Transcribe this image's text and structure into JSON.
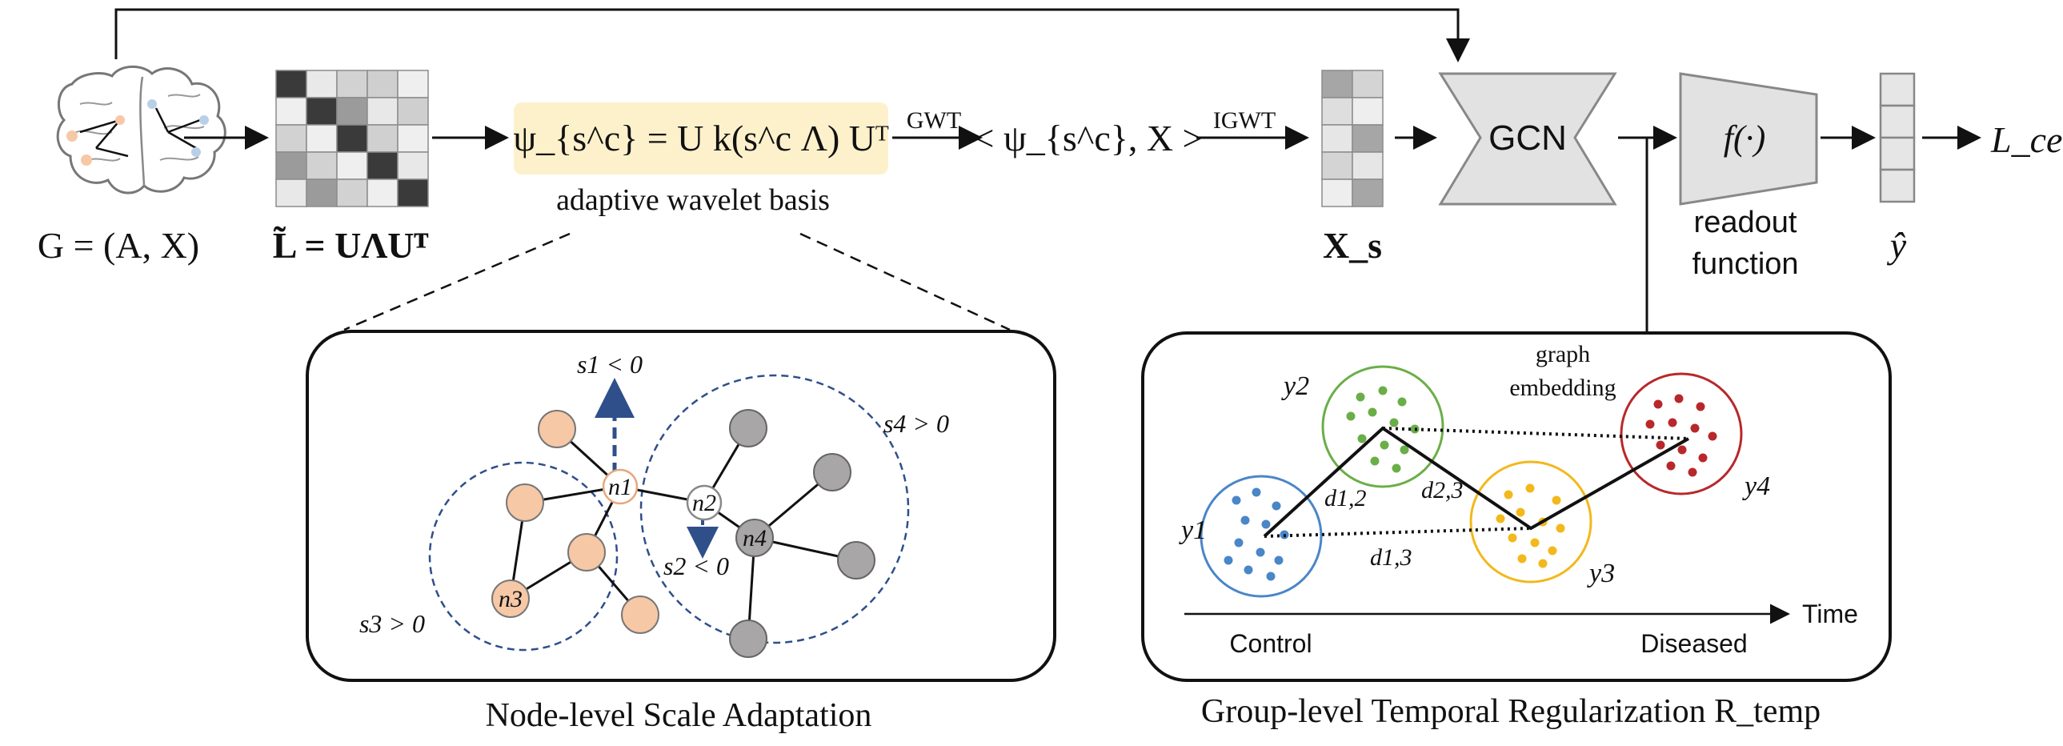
{
  "pipeline": {
    "input_graph": "G = (A, X)",
    "laplacian": "L̃ = UΛUᵀ",
    "wavelet_formula": "ψ_{s^c} = U k(s^c Λ) Uᵀ",
    "wavelet_caption": "adaptive wavelet basis",
    "gwt_label": "GWT",
    "inner_product": "< ψ_{s^c}, X >",
    "igwt_label": "IGWT",
    "xs_label": "X_s",
    "gcn_label": "GCN",
    "readout_symbol": "f(·)",
    "readout_caption_line1": "readout",
    "readout_caption_line2": "function",
    "yhat_label": "ŷ",
    "loss_label": "L_ce"
  },
  "node_panel": {
    "title": "Node-level Scale Adaptation",
    "labels": {
      "s1": "s1 < 0",
      "s2": "s2 < 0",
      "s3": "s3 > 0",
      "s4": "s4 > 0",
      "n1": "n1",
      "n2": "n2",
      "n3": "n3",
      "n4": "n4"
    }
  },
  "temporal_panel": {
    "title": "Group-level Temporal Regularization R_temp",
    "embedding_line1": "graph",
    "embedding_line2": "embedding",
    "groups": [
      "y1",
      "y2",
      "y3",
      "y4"
    ],
    "distances": [
      "d1,2",
      "d2,3",
      "d1,3"
    ],
    "axis_label": "Time",
    "axis_start": "Control",
    "axis_end": "Diseased"
  },
  "colors": {
    "wavelet_highlight": "#fdf1cc",
    "peach_node": "#f6c8a6",
    "gray_node": "#a8a6a6",
    "blue_group": "#4a86c8",
    "green_group": "#6aae48",
    "yellow_group": "#f2b81c",
    "red_group": "#b8282a",
    "dashed_scale": "#2f4f8a",
    "block_fill": "#e2e2e2"
  }
}
